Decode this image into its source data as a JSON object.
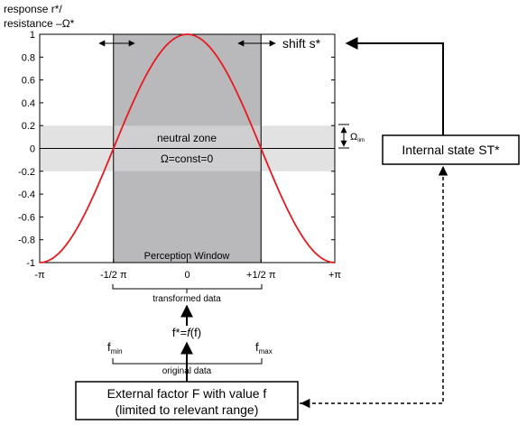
{
  "axis": {
    "ylabel_line1": "response r*/",
    "ylabel_line2": "resistance –Ω*",
    "y_ticks": [
      "1",
      "0.8",
      "0.6",
      "0.4",
      "0.2",
      "0",
      "-0.2",
      "-0.4",
      "-0.6",
      "-0.8",
      "-1"
    ],
    "x_ticks": [
      "-π",
      "-1/2 π",
      "0",
      "+1/2 π",
      "+π"
    ]
  },
  "chart_data": {
    "type": "line",
    "series": [
      {
        "x": [
          -3.1416,
          -2.3562,
          -1.5708,
          -0.7854,
          0,
          0.7854,
          1.5708,
          2.3562,
          3.1416
        ],
        "values": [
          -1,
          -0.7071,
          0,
          0.7071,
          1,
          0.7071,
          0,
          -0.7071,
          -1
        ]
      }
    ],
    "xlim": [
      -3.1416,
      3.1416
    ],
    "ylim": [
      -1,
      1
    ],
    "perception_window_x": [
      -1.5708,
      1.5708
    ],
    "neutral_band_y": [
      -0.2,
      0.2
    ]
  },
  "labels": {
    "neutral_zone": "neutral zone",
    "omega_const": "Ω=const=0",
    "perception_window": "Perception Window",
    "shift": "shift s*",
    "omega_lim_main": "Ω",
    "omega_lim_sub": "lim",
    "transformed_data": "transformed data",
    "mapping": "f*=f(f)",
    "mapping_pre": "f*=",
    "mapping_fn": "f",
    "mapping_post": "(f)",
    "fmin_main": "f",
    "fmin_sub": "min",
    "fmax_main": "f",
    "fmax_sub": "max",
    "original_data": "original data"
  },
  "boxes": {
    "internal_state": "Internal state ST*",
    "external_line1": "External factor F with value f",
    "external_line2": "(limited to relevant range)"
  },
  "colors": {
    "curve": "#e8191f",
    "window": "#b9b9bb",
    "neutral_band": "#e2e2e2",
    "neutral_band_window": "#cfcfd1"
  }
}
